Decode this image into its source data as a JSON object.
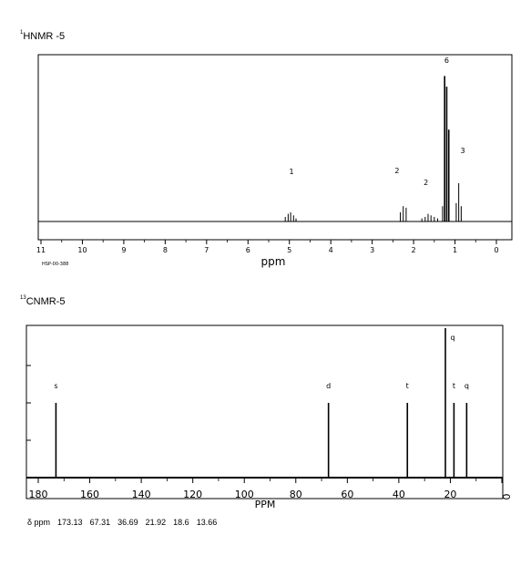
{
  "hnmr": {
    "title_sup": "1",
    "title": "HNMR -5",
    "xlabel": "ppm",
    "code": "HSP-00-388",
    "ticks": [
      "11",
      "10",
      "9",
      "8",
      "7",
      "6",
      "5",
      "4",
      "3",
      "2",
      "1",
      "0"
    ],
    "integrals": [
      {
        "label": "1",
        "ppm": 4.95
      },
      {
        "label": "2",
        "ppm": 2.4
      },
      {
        "label": "2",
        "ppm": 1.7
      },
      {
        "label": "6",
        "ppm": 1.2
      },
      {
        "label": "3",
        "ppm": 0.9
      }
    ]
  },
  "cnmr": {
    "title_sup": "13",
    "title": "CNMR-5",
    "xlabel": "PPM",
    "ticks": [
      "180",
      "160",
      "140",
      "120",
      "100",
      "80",
      "60",
      "40",
      "20",
      "0"
    ],
    "shift_label": "δ ppm",
    "shifts": [
      "173.13",
      "67.31",
      "36.69",
      "21.92",
      "18.6",
      "13.66"
    ]
  },
  "chart_data": [
    {
      "type": "line",
      "title": "HNMR -5",
      "xlabel": "ppm",
      "xlim": [
        11,
        0
      ],
      "reversed_x": true,
      "peaks": [
        {
          "ppm": 5.1,
          "height": 0.03
        },
        {
          "ppm": 5.03,
          "height": 0.05
        },
        {
          "ppm": 4.97,
          "height": 0.06
        },
        {
          "ppm": 4.9,
          "height": 0.04
        },
        {
          "ppm": 4.84,
          "height": 0.02
        },
        {
          "ppm": 2.32,
          "height": 0.06
        },
        {
          "ppm": 2.25,
          "height": 0.1
        },
        {
          "ppm": 2.18,
          "height": 0.09
        },
        {
          "ppm": 1.8,
          "height": 0.02
        },
        {
          "ppm": 1.72,
          "height": 0.03
        },
        {
          "ppm": 1.65,
          "height": 0.05
        },
        {
          "ppm": 1.58,
          "height": 0.04
        },
        {
          "ppm": 1.5,
          "height": 0.03
        },
        {
          "ppm": 1.42,
          "height": 0.02
        },
        {
          "ppm": 1.3,
          "height": 0.1
        },
        {
          "ppm": 1.25,
          "height": 0.95
        },
        {
          "ppm": 1.2,
          "height": 0.88
        },
        {
          "ppm": 1.15,
          "height": 0.6
        },
        {
          "ppm": 0.97,
          "height": 0.12
        },
        {
          "ppm": 0.91,
          "height": 0.25
        },
        {
          "ppm": 0.85,
          "height": 0.1
        }
      ],
      "annotations": [
        {
          "label": "1",
          "ppm": 4.95
        },
        {
          "label": "2",
          "ppm": 2.4
        },
        {
          "label": "2",
          "ppm": 1.7
        },
        {
          "label": "6",
          "ppm": 1.2
        },
        {
          "label": "3",
          "ppm": 0.9
        }
      ]
    },
    {
      "type": "bar",
      "title": "CNMR-5",
      "xlabel": "PPM",
      "xlim": [
        185,
        0
      ],
      "reversed_x": true,
      "peaks": [
        {
          "ppm": 173.13,
          "height": 0.5,
          "label": "s"
        },
        {
          "ppm": 67.31,
          "height": 0.5,
          "label": "d"
        },
        {
          "ppm": 36.69,
          "height": 0.5,
          "label": "t"
        },
        {
          "ppm": 21.92,
          "height": 1.0,
          "label": "q"
        },
        {
          "ppm": 18.6,
          "height": 0.5,
          "label": "t"
        },
        {
          "ppm": 13.66,
          "height": 0.5,
          "label": "q"
        }
      ]
    }
  ]
}
